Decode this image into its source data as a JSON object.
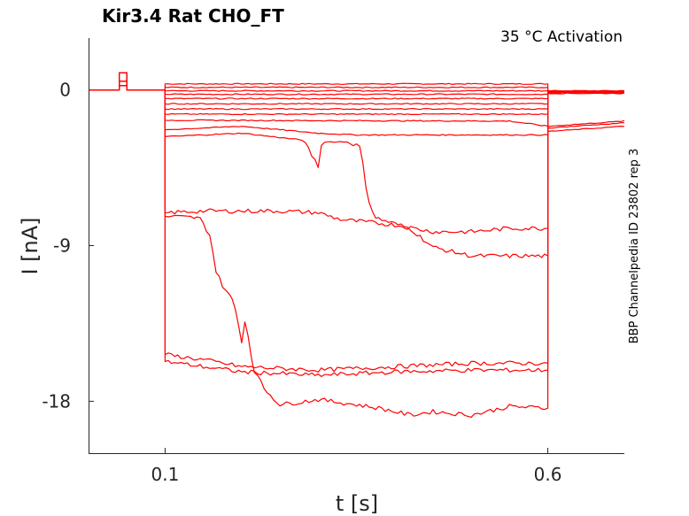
{
  "chart_data": {
    "type": "line",
    "title": "Kir3.4  Rat  CHO_FT",
    "annotation": "35 °C  Activation",
    "side_annotation": "BBP Channelpedia ID 23802 rep 3",
    "xlabel": "t [s]",
    "ylabel": "I [nA]",
    "xlim": [
      0.0,
      0.7
    ],
    "ylim": [
      -21,
      3
    ],
    "xticks": [
      0.1,
      0.6
    ],
    "xtick_labels": [
      "0.1",
      "0.6"
    ],
    "yticks": [
      0,
      -9,
      -18
    ],
    "ytick_labels": [
      "0",
      "-9",
      "-18"
    ],
    "grid": false,
    "line_color": "#ff0000",
    "pulse": {
      "start": 0.1,
      "end": 0.6
    },
    "prepulse": {
      "start": 0.04,
      "end": 0.05,
      "levels": [
        1.0,
        0.5,
        0.25
      ]
    },
    "series": [
      {
        "steady": [
          [
            0.1,
            0.35
          ],
          [
            0.6,
            0.35
          ]
        ],
        "tail": -0.05
      },
      {
        "steady": [
          [
            0.1,
            0.15
          ],
          [
            0.6,
            0.15
          ]
        ],
        "tail": -0.05
      },
      {
        "steady": [
          [
            0.1,
            -0.05
          ],
          [
            0.6,
            -0.05
          ]
        ],
        "tail": -0.1
      },
      {
        "steady": [
          [
            0.1,
            -0.25
          ],
          [
            0.6,
            -0.25
          ]
        ],
        "tail": -0.1
      },
      {
        "steady": [
          [
            0.1,
            -0.5
          ],
          [
            0.6,
            -0.5
          ]
        ],
        "tail": -0.15
      },
      {
        "steady": [
          [
            0.1,
            -0.8
          ],
          [
            0.6,
            -0.8
          ]
        ],
        "tail": -0.15
      },
      {
        "steady": [
          [
            0.1,
            -1.1
          ],
          [
            0.6,
            -1.1
          ]
        ],
        "tail": -0.15
      },
      {
        "steady": [
          [
            0.1,
            -1.4
          ],
          [
            0.6,
            -1.4
          ]
        ],
        "tail": -0.2
      },
      {
        "steady": [
          [
            0.1,
            -1.75
          ],
          [
            0.55,
            -1.8
          ],
          [
            0.6,
            -2.1
          ]
        ],
        "tail": -2.1
      },
      {
        "steady": [
          [
            0.1,
            -2.3
          ],
          [
            0.2,
            -2.1
          ],
          [
            0.3,
            -2.5
          ],
          [
            0.35,
            -2.6
          ],
          [
            0.6,
            -2.6
          ]
        ],
        "tail": -2.4
      },
      {
        "steady": [
          [
            0.1,
            -2.7
          ],
          [
            0.2,
            -2.5
          ],
          [
            0.28,
            -2.9
          ],
          [
            0.3,
            -4.4
          ],
          [
            0.305,
            -3.0
          ],
          [
            0.34,
            -3.0
          ],
          [
            0.355,
            -3.3
          ],
          [
            0.365,
            -6.3
          ],
          [
            0.375,
            -7.4
          ],
          [
            0.42,
            -8.0
          ],
          [
            0.45,
            -9.1
          ],
          [
            0.5,
            -9.6
          ],
          [
            0.6,
            -9.6
          ]
        ],
        "tail": -0.1
      },
      {
        "steady": [
          [
            0.1,
            -7.1
          ],
          [
            0.15,
            -7.0
          ],
          [
            0.25,
            -7.0
          ],
          [
            0.3,
            -7.1
          ],
          [
            0.33,
            -7.5
          ],
          [
            0.4,
            -7.8
          ],
          [
            0.45,
            -8.2
          ],
          [
            0.5,
            -8.2
          ],
          [
            0.55,
            -8.0
          ],
          [
            0.6,
            -8.0
          ]
        ],
        "tail": -0.1
      },
      {
        "steady": [
          [
            0.1,
            -7.3
          ],
          [
            0.145,
            -7.4
          ],
          [
            0.16,
            -8.5
          ],
          [
            0.165,
            -10.3
          ],
          [
            0.175,
            -11.3
          ],
          [
            0.19,
            -12.3
          ],
          [
            0.2,
            -14.5
          ],
          [
            0.205,
            -13.2
          ],
          [
            0.215,
            -16.1
          ],
          [
            0.23,
            -17.3
          ],
          [
            0.25,
            -18.2
          ],
          [
            0.3,
            -17.9
          ],
          [
            0.35,
            -18.2
          ],
          [
            0.38,
            -18.4
          ],
          [
            0.42,
            -18.8
          ],
          [
            0.45,
            -18.6
          ],
          [
            0.5,
            -18.8
          ],
          [
            0.55,
            -18.3
          ],
          [
            0.6,
            -18.4
          ]
        ],
        "tail": -2.2
      },
      {
        "steady": [
          [
            0.1,
            -15.3
          ],
          [
            0.15,
            -15.6
          ],
          [
            0.2,
            -16.0
          ],
          [
            0.3,
            -16.2
          ],
          [
            0.4,
            -16.0
          ],
          [
            0.5,
            -15.8
          ],
          [
            0.6,
            -15.8
          ]
        ],
        "tail": -0.1
      },
      {
        "steady": [
          [
            0.1,
            -15.7
          ],
          [
            0.2,
            -16.3
          ],
          [
            0.3,
            -16.5
          ],
          [
            0.4,
            -16.3
          ],
          [
            0.5,
            -16.2
          ],
          [
            0.6,
            -16.2
          ]
        ],
        "tail": -0.1
      }
    ]
  }
}
